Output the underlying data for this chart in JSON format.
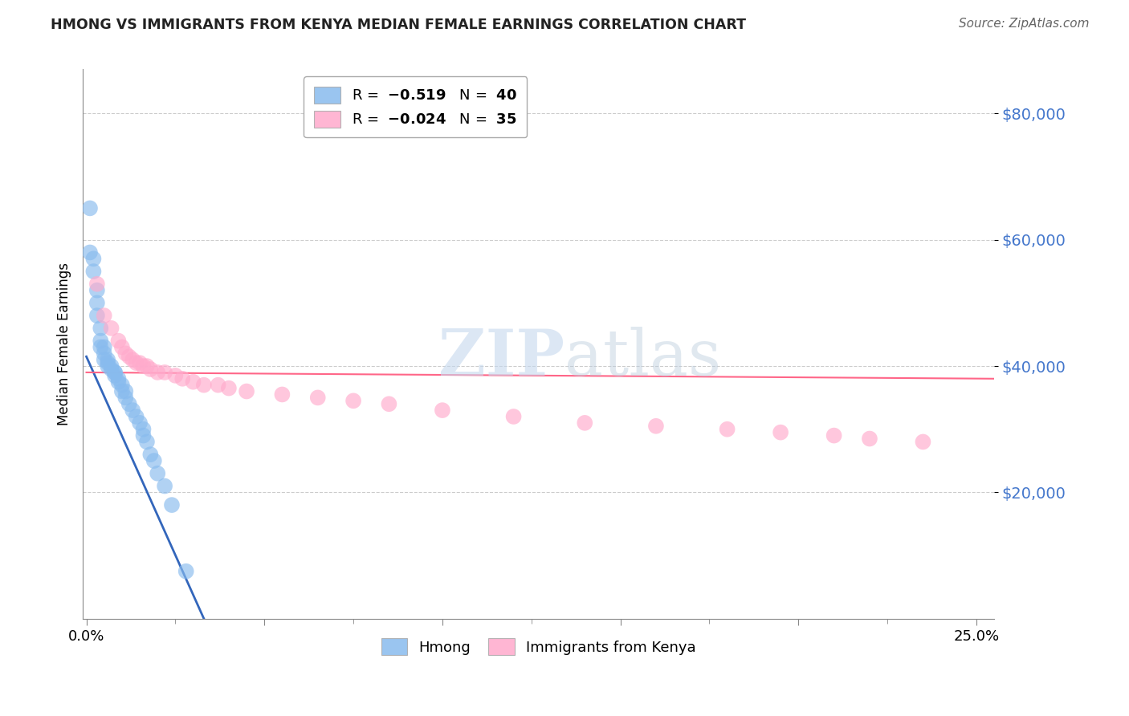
{
  "title": "HMONG VS IMMIGRANTS FROM KENYA MEDIAN FEMALE EARNINGS CORRELATION CHART",
  "source": "Source: ZipAtlas.com",
  "ylabel": "Median Female Earnings",
  "ytick_labels": [
    "$80,000",
    "$60,000",
    "$40,000",
    "$20,000"
  ],
  "ytick_vals": [
    80000,
    60000,
    40000,
    20000
  ],
  "ylim": [
    0,
    87000
  ],
  "xlim": [
    -0.001,
    0.255
  ],
  "hmong_R": -0.519,
  "hmong_N": 40,
  "kenya_R": -0.024,
  "kenya_N": 35,
  "hmong_color": "#88BBEE",
  "kenya_color": "#FFAACC",
  "hmong_line_color": "#3366BB",
  "kenya_line_color": "#FF6688",
  "background_color": "#FFFFFF",
  "watermark_zip": "ZIP",
  "watermark_atlas": "atlas",
  "hmong_x": [
    0.001,
    0.001,
    0.002,
    0.002,
    0.003,
    0.003,
    0.003,
    0.004,
    0.004,
    0.004,
    0.005,
    0.005,
    0.005,
    0.006,
    0.006,
    0.006,
    0.007,
    0.007,
    0.008,
    0.008,
    0.008,
    0.009,
    0.009,
    0.01,
    0.01,
    0.011,
    0.011,
    0.012,
    0.013,
    0.014,
    0.015,
    0.016,
    0.016,
    0.017,
    0.018,
    0.019,
    0.02,
    0.022,
    0.024,
    0.028
  ],
  "hmong_y": [
    65000,
    58000,
    57000,
    55000,
    52000,
    50000,
    48000,
    46000,
    44000,
    43000,
    43000,
    42000,
    41000,
    41000,
    40500,
    40000,
    40000,
    39500,
    39000,
    39000,
    38500,
    38000,
    37500,
    37000,
    36000,
    36000,
    35000,
    34000,
    33000,
    32000,
    31000,
    30000,
    29000,
    28000,
    26000,
    25000,
    23000,
    21000,
    18000,
    7500
  ],
  "kenya_x": [
    0.003,
    0.005,
    0.007,
    0.009,
    0.01,
    0.011,
    0.012,
    0.013,
    0.014,
    0.015,
    0.016,
    0.017,
    0.018,
    0.02,
    0.022,
    0.025,
    0.027,
    0.03,
    0.033,
    0.037,
    0.04,
    0.045,
    0.055,
    0.065,
    0.075,
    0.085,
    0.1,
    0.12,
    0.14,
    0.16,
    0.18,
    0.195,
    0.21,
    0.22,
    0.235
  ],
  "kenya_y": [
    53000,
    48000,
    46000,
    44000,
    43000,
    42000,
    41500,
    41000,
    40500,
    40500,
    40000,
    40000,
    39500,
    39000,
    39000,
    38500,
    38000,
    37500,
    37000,
    37000,
    36500,
    36000,
    35500,
    35000,
    34500,
    34000,
    33000,
    32000,
    31000,
    30500,
    30000,
    29500,
    29000,
    28500,
    28000
  ],
  "hmong_line_x0": 0.0,
  "hmong_line_y0": 41500,
  "hmong_line_x1": 0.033,
  "hmong_line_y1": 0,
  "kenya_line_x0": 0.0,
  "kenya_line_y0": 39000,
  "kenya_line_x1": 0.255,
  "kenya_line_y1": 38000,
  "xtick_left_label": "0.0%",
  "xtick_right_label": "25.0%",
  "legend1_label": "R =  -0.519   N =  40",
  "bottom_legend1": "Hmong",
  "bottom_legend2": "Immigrants from Kenya"
}
